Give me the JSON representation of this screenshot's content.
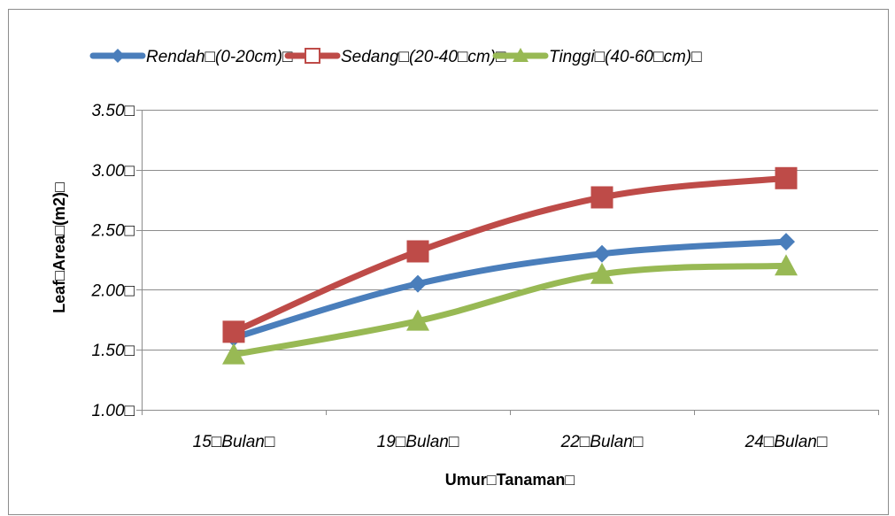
{
  "chart_data": {
    "type": "line",
    "categories": [
      "15□Bulan□",
      "19□Bulan□",
      "22□Bulan□",
      "24□Bulan□"
    ],
    "series": [
      {
        "name": "Rendah□(0-20cm)□",
        "color": "#4a7ebb",
        "marker": "diamond",
        "values": [
          1.6,
          2.05,
          2.3,
          2.4
        ]
      },
      {
        "name": "Sedang□(20-40□cm)□",
        "color": "#be4b48",
        "marker": "square",
        "values": [
          1.65,
          2.32,
          2.77,
          2.93
        ]
      },
      {
        "name": "Tinggi□(40-60□cm)□",
        "color": "#98b954",
        "marker": "triangle",
        "values": [
          1.46,
          1.74,
          2.13,
          2.2
        ]
      }
    ],
    "yticks": [
      "1.00□",
      "1.50□",
      "2.00□",
      "2.50□",
      "3.00□",
      "3.50□"
    ],
    "ylim": [
      1.0,
      3.5
    ],
    "xlabel": "Umur□Tanaman□",
    "ylabel": "Leaf□Area□(m2)□",
    "legend_position": "top",
    "grid": "horizontal"
  }
}
